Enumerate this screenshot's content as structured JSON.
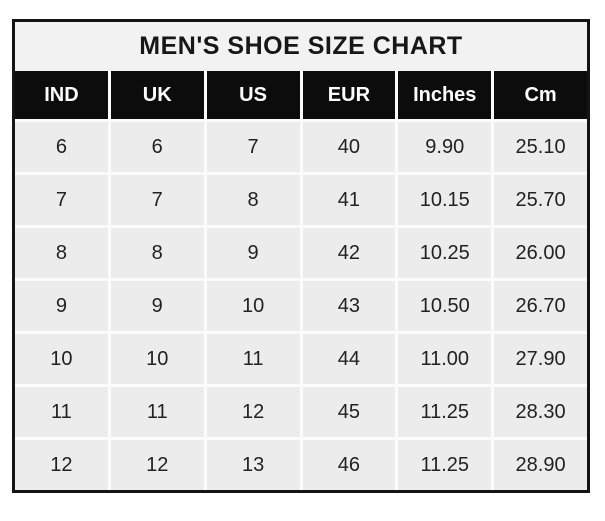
{
  "title": "MEN'S SHOE SIZE CHART",
  "colors": {
    "page_bg": "#ffffff",
    "outer_border": "#141414",
    "title_bg": "#f2f2f2",
    "title_text": "#171717",
    "header_bg": "#0c0c0c",
    "header_text": "#fdfdfd",
    "cell_bg": "#ececec",
    "cell_text": "#222222",
    "separator": "#fbfbfb"
  },
  "chart_data": {
    "type": "table",
    "title": "MEN'S SHOE SIZE CHART",
    "columns": [
      "IND",
      "UK",
      "US",
      "EUR",
      "Inches",
      "Cm"
    ],
    "rows": [
      [
        "6",
        "6",
        "7",
        "40",
        "9.90",
        "25.10"
      ],
      [
        "7",
        "7",
        "8",
        "41",
        "10.15",
        "25.70"
      ],
      [
        "8",
        "8",
        "9",
        "42",
        "10.25",
        "26.00"
      ],
      [
        "9",
        "9",
        "10",
        "43",
        "10.50",
        "26.70"
      ],
      [
        "10",
        "10",
        "11",
        "44",
        "11.00",
        "27.90"
      ],
      [
        "11",
        "11",
        "12",
        "45",
        "11.25",
        "28.30"
      ],
      [
        "12",
        "12",
        "13",
        "46",
        "11.25",
        "28.90"
      ]
    ],
    "layout": {
      "grid": "6 equal columns, white gridline separators",
      "legend": "none",
      "header_style": "black background, white bold text",
      "body_style": "light gray cells, centered dark text"
    }
  }
}
